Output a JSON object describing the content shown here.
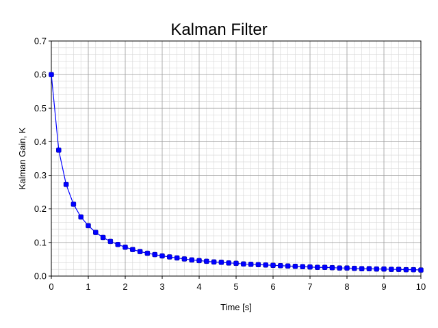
{
  "chart_data": {
    "type": "line",
    "title": "Kalman Filter",
    "xlabel": "Time [s]",
    "ylabel": "Kalman Gain, K",
    "xlim": [
      0,
      10
    ],
    "ylim": [
      0,
      0.7
    ],
    "grid": true,
    "x_ticks": [
      "0",
      "1",
      "2",
      "3",
      "4",
      "5",
      "6",
      "7",
      "8",
      "9",
      "10"
    ],
    "y_ticks": [
      "0.0",
      "0.1",
      "0.2",
      "0.3",
      "0.4",
      "0.5",
      "0.6",
      "0.7"
    ],
    "series": [
      {
        "color": "#0000ff",
        "x": [
          0,
          0.2,
          0.4,
          0.6,
          0.8,
          1.0,
          1.2,
          1.4,
          1.6,
          1.8,
          2.0,
          2.2,
          2.4,
          2.6,
          2.8,
          3.0,
          3.2,
          3.4,
          3.6,
          3.8,
          4.0,
          4.2,
          4.4,
          4.6,
          4.8,
          5.0,
          5.2,
          5.4,
          5.6,
          5.8,
          6.0,
          6.2,
          6.4,
          6.6,
          6.8,
          7.0,
          7.2,
          7.4,
          7.6,
          7.8,
          8.0,
          8.2,
          8.4,
          8.6,
          8.8,
          9.0,
          9.2,
          9.4,
          9.6,
          9.8,
          10.0
        ],
        "y": [
          0.6,
          0.375,
          0.273,
          0.214,
          0.176,
          0.15,
          0.13,
          0.115,
          0.103,
          0.094,
          0.086,
          0.079,
          0.073,
          0.068,
          0.064,
          0.06,
          0.057,
          0.054,
          0.051,
          0.048,
          0.046,
          0.044,
          0.042,
          0.041,
          0.039,
          0.038,
          0.036,
          0.035,
          0.034,
          0.033,
          0.032,
          0.031,
          0.03,
          0.029,
          0.028,
          0.027,
          0.026,
          0.026,
          0.025,
          0.024,
          0.024,
          0.023,
          0.022,
          0.022,
          0.021,
          0.021,
          0.02,
          0.02,
          0.019,
          0.019,
          0.018
        ]
      }
    ]
  }
}
